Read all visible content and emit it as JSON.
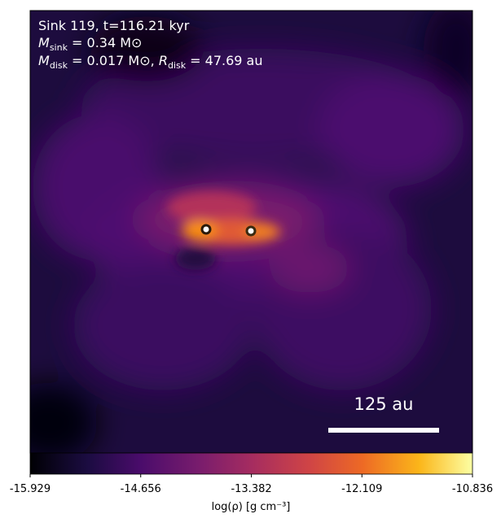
{
  "chart_data": {
    "type": "image",
    "annotations": [
      {
        "text": "Sink 119, t=116.21 kyr"
      },
      {
        "symbol": "M",
        "subscript": "sink",
        "rest": " = 0.34 M⊙"
      },
      {
        "symbol": "M",
        "subscript": "disk",
        "rest": " = 0.017 M⊙, ",
        "symbol2": "R",
        "subscript2": "disk",
        "rest2": " = 47.69 au"
      }
    ],
    "scale_bar_label": "125 au",
    "colorbar": {
      "label": "log(ρ) [g cm⁻³]",
      "colormap": "inferno",
      "clim": [
        -15.929,
        -10.836
      ],
      "ticks": [
        -15.929,
        -14.656,
        -13.382,
        -12.109,
        -10.836
      ]
    }
  }
}
